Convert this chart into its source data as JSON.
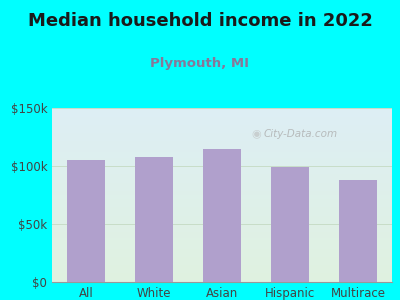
{
  "title": "Median household income in 2022",
  "subtitle": "Plymouth, MI",
  "categories": [
    "All",
    "White",
    "Asian",
    "Hispanic",
    "Multirace"
  ],
  "values": [
    105000,
    108000,
    115000,
    99000,
    88000
  ],
  "bar_color": "#b0a0cc",
  "title_fontsize": 13,
  "subtitle_fontsize": 9.5,
  "title_color": "#1a1a1a",
  "subtitle_color": "#887799",
  "tick_label_fontsize": 8.5,
  "background_outer": "#00ffff",
  "background_plot_bottom": "#e0f2e0",
  "background_plot_top": "#ddeef5",
  "ylim": [
    0,
    150000
  ],
  "yticks": [
    0,
    50000,
    100000,
    150000
  ],
  "ytick_labels": [
    "$0",
    "$50k",
    "$100k",
    "$150k"
  ],
  "watermark": "City-Data.com",
  "grid_color": "#c8ddc8"
}
